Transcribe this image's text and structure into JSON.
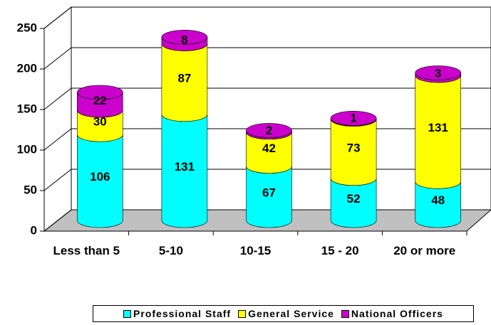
{
  "chart_data": {
    "type": "bar3d",
    "categories": [
      "Less than 5",
      "5-10",
      "10-15",
      "15 - 20",
      "20 or more"
    ],
    "series": [
      {
        "name": "Professional Staff",
        "color": "#00ffff",
        "values": [
          106,
          131,
          67,
          52,
          48
        ]
      },
      {
        "name": "General Service",
        "color": "#ffff00",
        "values": [
          30,
          87,
          42,
          73,
          131
        ]
      },
      {
        "name": "National Officers",
        "color": "#cc00cc",
        "values": [
          22,
          8,
          2,
          1,
          3
        ]
      }
    ],
    "stacked": true,
    "ylim": [
      0,
      250
    ],
    "yticks": [
      0,
      50,
      100,
      150,
      200,
      250
    ],
    "grid": true
  }
}
